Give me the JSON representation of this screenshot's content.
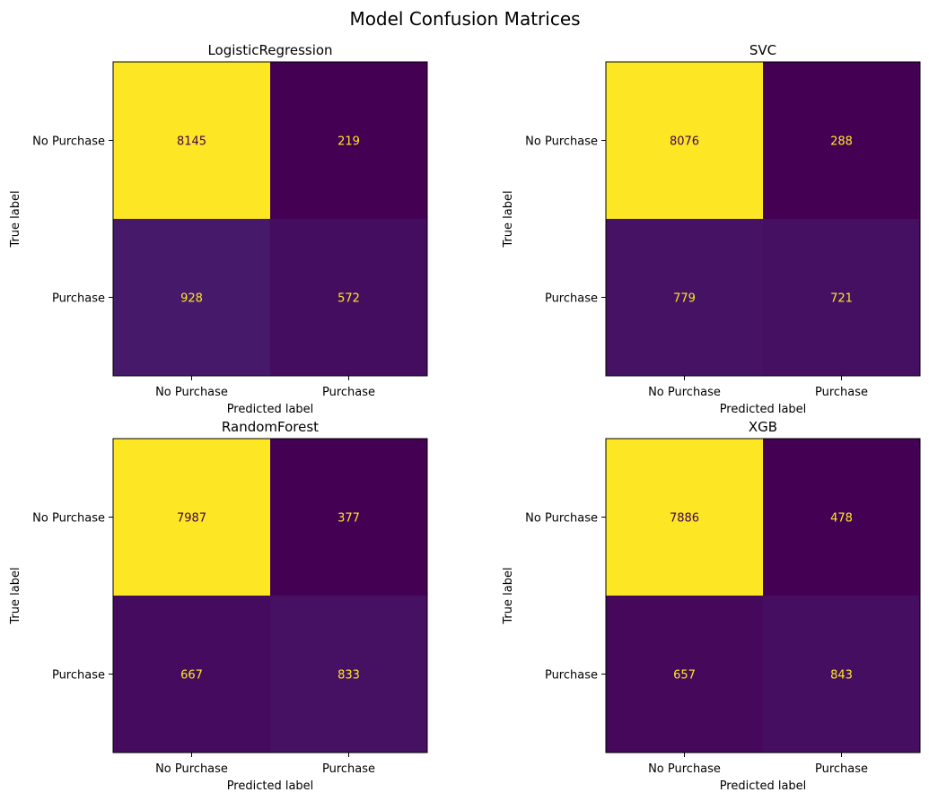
{
  "figure": {
    "title": "Model Confusion Matrices"
  },
  "chart_data": [
    {
      "type": "heatmap",
      "title": "LogisticRegression",
      "xlabel": "Predicted label",
      "ylabel": "True label",
      "x_categories": [
        "No Purchase",
        "Purchase"
      ],
      "y_categories": [
        "No Purchase",
        "Purchase"
      ],
      "values": [
        [
          8145,
          219
        ],
        [
          928,
          572
        ]
      ],
      "colormap": "viridis",
      "grid": false
    },
    {
      "type": "heatmap",
      "title": "SVC",
      "xlabel": "Predicted label",
      "ylabel": "True label",
      "x_categories": [
        "No Purchase",
        "Purchase"
      ],
      "y_categories": [
        "No Purchase",
        "Purchase"
      ],
      "values": [
        [
          8076,
          288
        ],
        [
          779,
          721
        ]
      ],
      "colormap": "viridis",
      "grid": false
    },
    {
      "type": "heatmap",
      "title": "RandomForest",
      "xlabel": "Predicted label",
      "ylabel": "True label",
      "x_categories": [
        "No Purchase",
        "Purchase"
      ],
      "y_categories": [
        "No Purchase",
        "Purchase"
      ],
      "values": [
        [
          7987,
          377
        ],
        [
          667,
          833
        ]
      ],
      "colormap": "viridis",
      "grid": false
    },
    {
      "type": "heatmap",
      "title": "XGB",
      "xlabel": "Predicted label",
      "ylabel": "True label",
      "x_categories": [
        "No Purchase",
        "Purchase"
      ],
      "y_categories": [
        "No Purchase",
        "Purchase"
      ],
      "values": [
        [
          7886,
          478
        ],
        [
          657,
          843
        ]
      ],
      "colormap": "viridis",
      "grid": false
    }
  ]
}
